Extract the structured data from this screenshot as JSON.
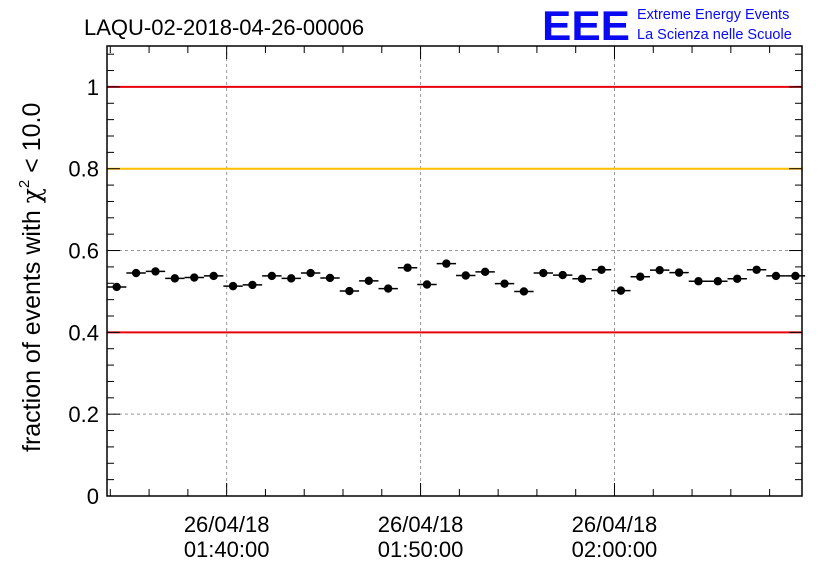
{
  "chart_data": {
    "type": "scatter",
    "title": "LAQU-02-2018-04-26-00006",
    "ylabel": "fraction of events with χ² < 10.0",
    "ylabel_parts": {
      "pre": "fraction of events with ",
      "chi": "χ",
      "sup": "2",
      "post": " < 10.0"
    },
    "xlabel": "",
    "ylim": [
      0,
      1.1
    ],
    "yticks": [
      0,
      0.2,
      0.4,
      0.6,
      0.8,
      1
    ],
    "ytick_labels": [
      "0",
      "0.2",
      "0.4",
      "0.6",
      "0.8",
      "1"
    ],
    "xlim_minutes": [
      33.83,
      69.67
    ],
    "xticks": [
      {
        "minutes": 40,
        "date": "26/04/18",
        "time": "01:40:00"
      },
      {
        "minutes": 50,
        "date": "26/04/18",
        "time": "01:50:00"
      },
      {
        "minutes": 60,
        "date": "26/04/18",
        "time": "02:00:00"
      }
    ],
    "bin_width_minutes": 1.0,
    "grid": true,
    "reference_lines": [
      {
        "y": 1.0,
        "color": "#e8000b"
      },
      {
        "y": 0.8,
        "color": "#ffbf00"
      },
      {
        "y": 0.4,
        "color": "#e8000b"
      }
    ],
    "series": [
      {
        "name": "fraction",
        "x_minutes": [
          34.33,
          35.33,
          36.33,
          37.33,
          38.33,
          39.33,
          40.33,
          41.33,
          42.33,
          43.33,
          44.33,
          45.33,
          46.33,
          47.33,
          48.33,
          49.33,
          50.33,
          51.33,
          52.33,
          53.33,
          54.33,
          55.33,
          56.33,
          57.33,
          58.33,
          59.33,
          60.33,
          61.33,
          62.33,
          63.33,
          64.33,
          65.33,
          66.33,
          67.33,
          68.33,
          69.33
        ],
        "values": [
          0.511,
          0.545,
          0.549,
          0.532,
          0.534,
          0.538,
          0.513,
          0.516,
          0.538,
          0.532,
          0.545,
          0.533,
          0.501,
          0.526,
          0.507,
          0.558,
          0.517,
          0.568,
          0.539,
          0.548,
          0.519,
          0.5,
          0.545,
          0.54,
          0.531,
          0.553,
          0.502,
          0.536,
          0.552,
          0.546,
          0.525,
          0.525,
          0.531,
          0.553,
          0.538,
          0.538
        ],
        "errors": [
          0.008,
          0.008,
          0.008,
          0.008,
          0.008,
          0.008,
          0.008,
          0.008,
          0.008,
          0.008,
          0.008,
          0.008,
          0.008,
          0.008,
          0.008,
          0.008,
          0.008,
          0.008,
          0.008,
          0.008,
          0.008,
          0.008,
          0.008,
          0.008,
          0.008,
          0.008,
          0.008,
          0.008,
          0.008,
          0.008,
          0.008,
          0.008,
          0.008,
          0.008,
          0.008,
          0.008
        ]
      }
    ]
  },
  "logo": {
    "text": "EEE",
    "line1": "Extreme Energy Events",
    "line2": "La Scienza nelle Scuole",
    "color": "#0a0af2"
  }
}
